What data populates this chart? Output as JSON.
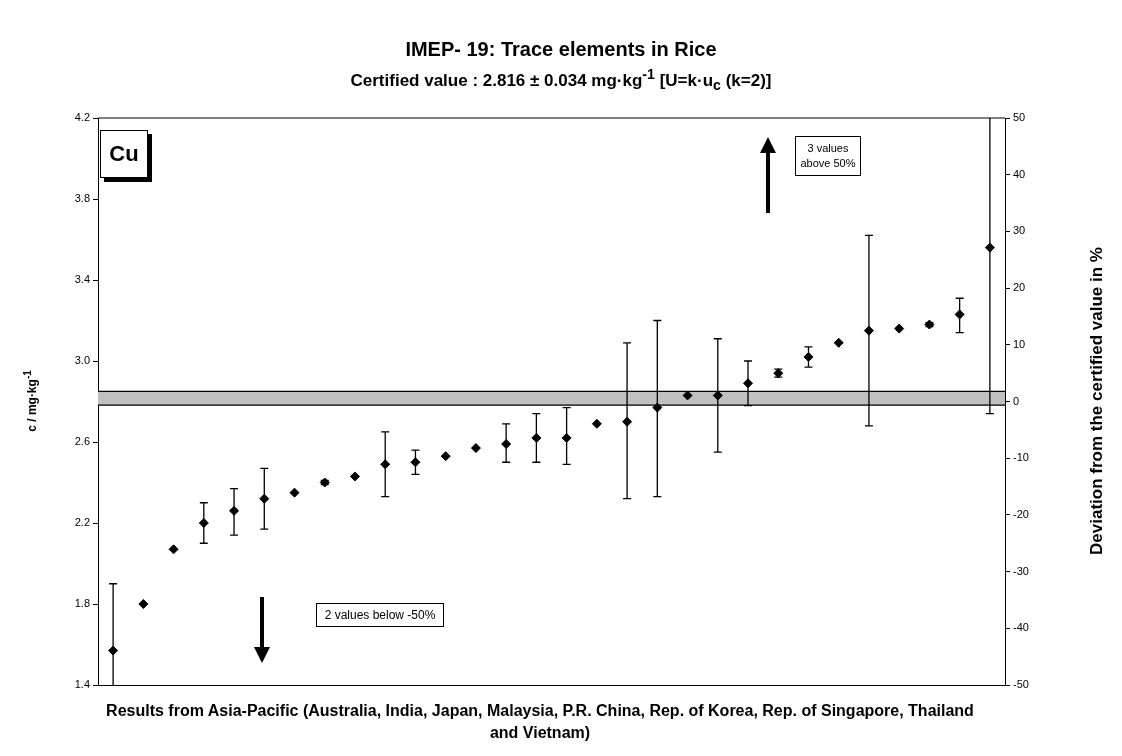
{
  "chart_data": {
    "type": "scatter",
    "title": "IMEP- 19: Trace elements in Rice",
    "subtitle": "Certified value : 2.816 ± 0.034 mg·kg$^{-1}$ [U=k·u$_{c}$ (k=2)]",
    "xlabel": "Results from Asia-Pacific (Australia, India, Japan, Malaysia, P.R. China, Rep. of Korea, Rep. of Singapore, Thailand and Vietnam)",
    "ylabel": "c / mg·kg$^{-1}$",
    "y2label": "Deviation from the certified value in %",
    "annotations": [
      "Cu",
      "3 values above 50%",
      "2 values below -50%"
    ],
    "categories": [
      null,
      null,
      null,
      null,
      null,
      null,
      null,
      null,
      null,
      null,
      null,
      null,
      null,
      null,
      null,
      null,
      null,
      null,
      null,
      null,
      null,
      null,
      null,
      null,
      null,
      null,
      null,
      null,
      null,
      null
    ],
    "series": [
      {
        "color": "#000000",
        "values": [
          1.57,
          1.8,
          2.07,
          2.2,
          2.26,
          2.32,
          2.35,
          2.4,
          2.43,
          2.49,
          2.5,
          2.53,
          2.57,
          2.59,
          2.62,
          2.62,
          2.69,
          2.7,
          2.77,
          2.83,
          2.83,
          2.89,
          2.94,
          3.02,
          3.09,
          3.15,
          3.16,
          3.18,
          3.23,
          3.56
        ],
        "errors": [
          [
            1.4,
            1.9
          ],
          null,
          null,
          [
            2.1,
            2.3
          ],
          [
            2.14,
            2.37
          ],
          [
            2.17,
            2.47
          ],
          null,
          [
            2.39,
            2.41
          ],
          null,
          [
            2.33,
            2.65
          ],
          [
            2.44,
            2.56
          ],
          null,
          null,
          [
            2.5,
            2.69
          ],
          [
            2.5,
            2.74
          ],
          [
            2.49,
            2.77
          ],
          null,
          [
            2.32,
            3.09
          ],
          [
            2.33,
            3.2
          ],
          null,
          [
            2.55,
            3.11
          ],
          [
            2.78,
            3.0
          ],
          [
            2.92,
            2.96
          ],
          [
            2.97,
            3.07
          ],
          null,
          [
            2.68,
            3.62
          ],
          null,
          [
            3.17,
            3.19
          ],
          [
            3.14,
            3.31
          ],
          [
            2.74,
            4.2
          ]
        ]
      }
    ],
    "marker": "diamond",
    "legend": false,
    "grid": false,
    "ylim": [
      1.4,
      4.2
    ],
    "yticks": [
      1.4,
      1.8,
      2.2,
      2.6,
      {
        "value": 3,
        "label": "3.0"
      },
      3.4,
      3.8,
      4.2
    ],
    "y2lim": [
      -50,
      50
    ],
    "y2ticks": [
      -50,
      -40,
      -30,
      -20,
      -10,
      0,
      10,
      20,
      30,
      40,
      50
    ],
    "bands": [
      {
        "axis": "y",
        "from": 2.782,
        "to": 2.85,
        "color": "#c0c0c0"
      }
    ],
    "ref_lines": [
      {
        "axis": "y",
        "value": 2.782,
        "color": "#000000"
      },
      {
        "axis": "y",
        "value": 2.85,
        "color": "#000000"
      }
    ]
  }
}
